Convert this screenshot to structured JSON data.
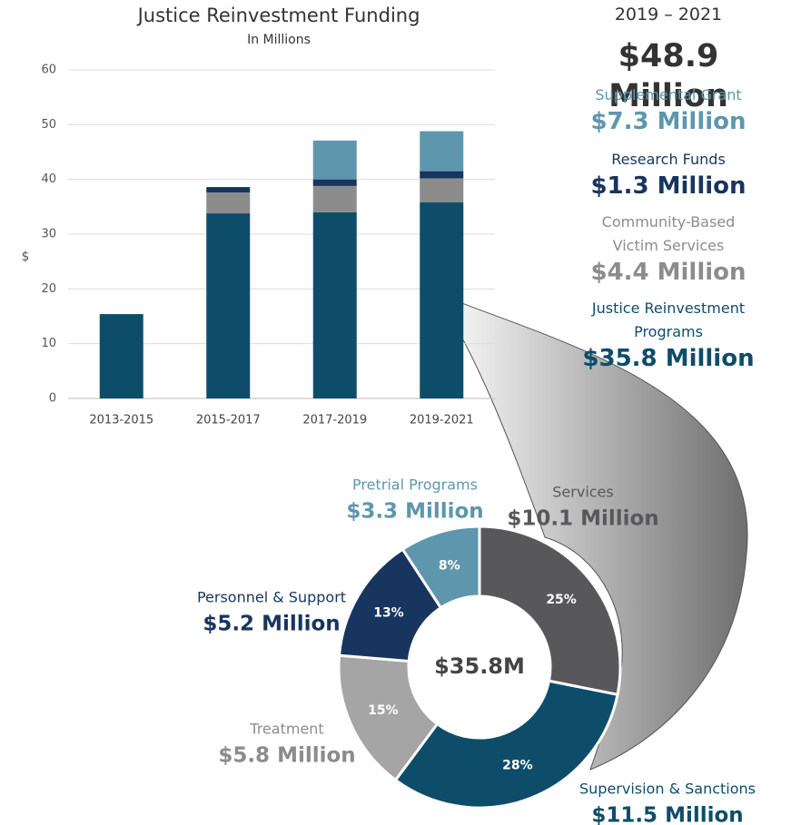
{
  "chart_data": [
    {
      "type": "bar",
      "title": "Justice Reinvestment Funding",
      "subtitle": "In Millions",
      "y_label": "$",
      "annotations": [
        "2019 – 2021",
        "$48.9 Million"
      ],
      "categories": [
        "2013-2015",
        "2015-2017",
        "2017-2019",
        "2019-2021"
      ],
      "series": [
        {
          "name": "Justice Reinvestment Programs",
          "color": "#0e4d6a",
          "values": [
            15.4,
            33.8,
            34.0,
            35.8
          ],
          "value_labels": [
            null,
            null,
            null,
            "$35.8 Million"
          ]
        },
        {
          "name": "Community-Based Victim Services",
          "color": "#8c8c8c",
          "values": [
            null,
            3.8,
            4.8,
            4.4
          ],
          "value_labels": [
            null,
            null,
            null,
            "$4.4 Million"
          ]
        },
        {
          "name": "Research Funds",
          "color": "#17355e",
          "values": [
            null,
            1.0,
            1.2,
            1.3
          ],
          "value_labels": [
            null,
            null,
            null,
            "$1.3 Million"
          ]
        },
        {
          "name": "Supplemental Grant",
          "color": "#5e97ad",
          "values": [
            null,
            null,
            7.1,
            7.3
          ],
          "value_labels": [
            null,
            null,
            null,
            "$7.3 Million"
          ]
        }
      ],
      "ylim": [
        0,
        60
      ],
      "yticks": [
        0,
        10,
        20,
        30,
        40,
        50,
        60
      ],
      "grid": true
    },
    {
      "type": "donut",
      "center_label": "$35.8M",
      "categories": [
        "Services",
        "Supervision & Sanctions",
        "Treatment",
        "Personnel & Support",
        "Pretrial Programs"
      ],
      "values": [
        10.1,
        11.5,
        5.8,
        5.2,
        3.3
      ],
      "value_labels": [
        "$10.1 Million",
        "$11.5 Million",
        "$5.8 Million",
        "$5.2 Million",
        "$3.3 Million"
      ],
      "percent_labels": [
        "25%",
        "28%",
        "15%",
        "13%",
        "8%"
      ],
      "colors": [
        "#58585a",
        "#0e4d6a",
        "#a5a5a5",
        "#17355e",
        "#5e97ad"
      ]
    }
  ]
}
